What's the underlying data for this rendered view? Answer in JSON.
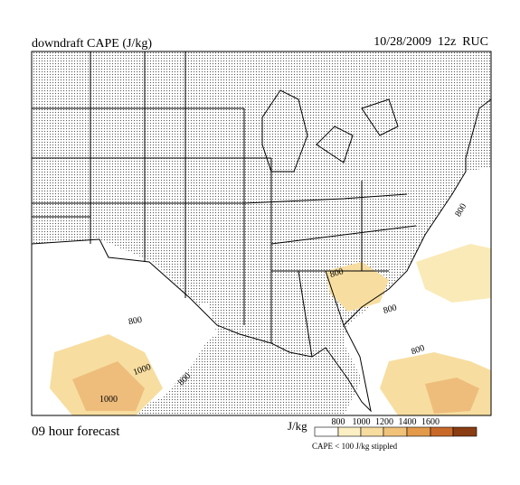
{
  "header": {
    "title": "downdraft CAPE (J/kg)",
    "run": "10/28/2009  12z  RUC"
  },
  "map": {
    "contour_labels": [
      "800",
      "800",
      "800",
      "800",
      "800",
      "800",
      "1000",
      "1000"
    ]
  },
  "footer": {
    "forecast": "09 hour forecast",
    "legend": {
      "unit": "J/kg",
      "ticks": [
        "800",
        "1000",
        "1200",
        "1400",
        "1600"
      ],
      "note": "CAPE < 100 J/kg stippled"
    }
  }
}
